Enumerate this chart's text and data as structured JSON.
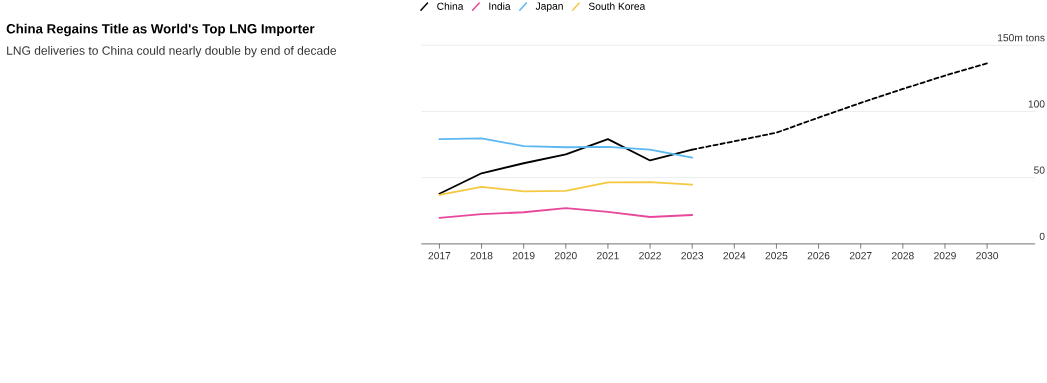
{
  "chart_data": {
    "type": "line",
    "title": "China Regains Title as World's Top LNG Importer",
    "subtitle": "LNG deliveries to China could nearly double by end of decade",
    "x": [
      2017,
      2018,
      2019,
      2020,
      2021,
      2022,
      2023
    ],
    "series": [
      {
        "name": "China",
        "color": "#000000",
        "values": [
          37.9,
          53.3,
          60.9,
          67.6,
          79.1,
          63.0,
          71.2
        ]
      },
      {
        "name": "India",
        "color": "#e8489b",
        "values": [
          19.7,
          22.4,
          23.9,
          27.0,
          24.2,
          20.3,
          21.8
        ]
      },
      {
        "name": "Japan",
        "color": "#5bb8f0",
        "values": [
          79.1,
          79.7,
          73.9,
          73.0,
          73.3,
          71.2,
          65.2
        ]
      },
      {
        "name": "South Korea",
        "color": "#f5c842",
        "values": [
          37.0,
          43.0,
          39.7,
          40.0,
          46.4,
          46.7,
          44.8
        ]
      },
      {
        "color": "#000000",
        "line_style": "dashed",
        "x": [
          2023,
          2024,
          2025,
          2026,
          2027,
          2028,
          2029,
          2030
        ],
        "values": [
          71.2,
          77.5,
          84.0,
          95.4,
          106.5,
          117.0,
          127.1,
          136.4
        ]
      }
    ],
    "xlim": [
      2016.57,
      2031.14
    ],
    "ylim": [
      0,
      150
    ],
    "xticks": [
      2017,
      2018,
      2019,
      2020,
      2021,
      2022,
      2023,
      2024,
      2025,
      2026,
      2027,
      2028,
      2029,
      2030
    ],
    "yticks": [
      0,
      50,
      100,
      {
        "value": 150,
        "label": "150m tons"
      }
    ],
    "grid": "y",
    "legend": "top left",
    "marker": "none"
  }
}
